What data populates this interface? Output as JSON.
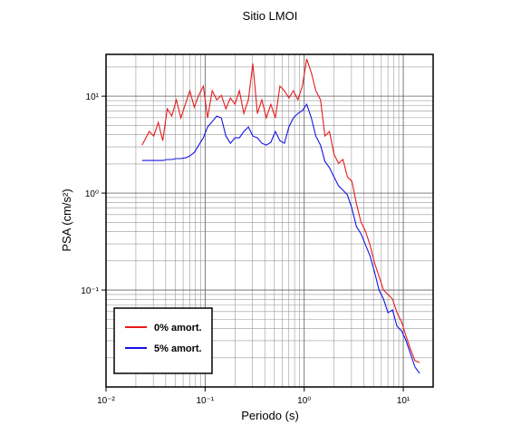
{
  "chart_data": {
    "type": "line",
    "title": "Sitio LMOI",
    "x_label": "Periodo (s)",
    "y_label": "PSA (cm/s²)",
    "x_scale": "log",
    "y_scale": "log",
    "grid": true,
    "legend": "lower left",
    "xlim": [
      0.01,
      20
    ],
    "ylim": [
      0.01,
      27
    ],
    "xticks": [
      {
        "value": 0.01,
        "label": "10⁻²"
      },
      {
        "value": 0.1,
        "label": "10⁻¹"
      },
      {
        "value": 1,
        "label": "10⁰"
      },
      {
        "value": 10,
        "label": "10¹"
      }
    ],
    "yticks": [
      {
        "value": 0.1,
        "label": "10⁻¹"
      },
      {
        "value": 1,
        "label": "10⁰"
      },
      {
        "value": 10,
        "label": "10¹"
      }
    ],
    "x": [
      0.0231,
      0.0273,
      0.0303,
      0.0337,
      0.0374,
      0.0415,
      0.0461,
      0.0512,
      0.0569,
      0.0631,
      0.0701,
      0.0778,
      0.0863,
      0.0959,
      0.106,
      0.118,
      0.131,
      0.146,
      0.162,
      0.18,
      0.2,
      0.222,
      0.246,
      0.273,
      0.303,
      0.337,
      0.374,
      0.415,
      0.461,
      0.512,
      0.569,
      0.631,
      0.701,
      0.778,
      0.863,
      0.959,
      1.06,
      1.18,
      1.31,
      1.46,
      1.62,
      1.8,
      2.0,
      2.22,
      2.46,
      2.73,
      3.03,
      3.37,
      3.74,
      4.15,
      4.61,
      5.12,
      5.69,
      6.31,
      7.01,
      7.78,
      8.63,
      9.59,
      10.6,
      11.8,
      13.1,
      14.6
    ],
    "series": [
      {
        "name": "0% amort.",
        "color": "#e8191b",
        "values": [
          3.13,
          4.32,
          3.88,
          5.36,
          3.48,
          7.4,
          6.23,
          9.18,
          5.97,
          8.24,
          11.4,
          7.72,
          10.2,
          12.7,
          5.97,
          11.4,
          9.18,
          10.2,
          7.4,
          9.58,
          8.24,
          11.4,
          6.64,
          9.18,
          21.7,
          6.64,
          9.18,
          5.97,
          8.24,
          5.97,
          12.7,
          11.4,
          9.58,
          11.4,
          9.18,
          12.7,
          24.2,
          17.5,
          11.4,
          9.18,
          3.88,
          4.32,
          2.52,
          2.03,
          2.22,
          1.47,
          1.32,
          0.773,
          0.502,
          0.405,
          0.293,
          0.191,
          0.138,
          0.1,
          0.0898,
          0.0807,
          0.0584,
          0.0471,
          0.0341,
          0.0247,
          0.0187,
          0.0179
        ]
      },
      {
        "name": "5% amort.",
        "color": "#1414e6",
        "values": [
          2.17,
          2.17,
          2.17,
          2.17,
          2.17,
          2.22,
          2.22,
          2.27,
          2.27,
          2.31,
          2.42,
          2.63,
          3.13,
          3.72,
          4.81,
          5.47,
          6.23,
          5.97,
          3.88,
          3.27,
          3.72,
          3.72,
          4.32,
          4.81,
          3.88,
          3.72,
          3.27,
          3.13,
          3.34,
          4.32,
          3.48,
          3.27,
          4.81,
          5.97,
          6.64,
          7.09,
          8.24,
          5.97,
          3.88,
          3.13,
          2.12,
          1.83,
          1.47,
          1.19,
          1.07,
          0.958,
          0.693,
          0.451,
          0.38,
          0.293,
          0.226,
          0.154,
          0.1,
          0.0807,
          0.0584,
          0.0623,
          0.0423,
          0.038,
          0.0306,
          0.0222,
          0.0161,
          0.0138
        ]
      }
    ]
  }
}
